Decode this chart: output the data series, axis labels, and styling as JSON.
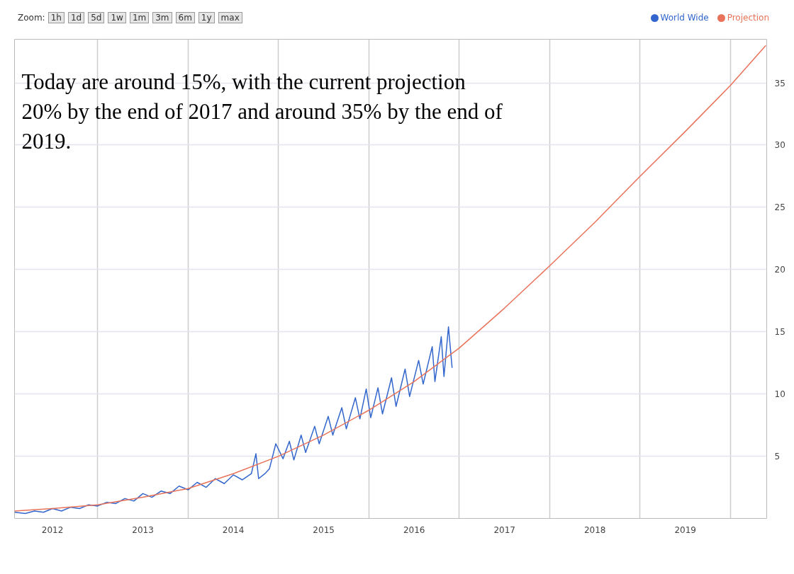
{
  "chart_data": {
    "type": "line",
    "annotations": [
      "Zoom:",
      "1h",
      "1d",
      "5d",
      "1w",
      "1m",
      "3m",
      "6m",
      "1y",
      "max",
      "Today are around 15%, with the current projection 20% by the end of 2017 and around 35% by the end of 2019."
    ],
    "xlim": [
      2012.08,
      2020.4
    ],
    "ylim": [
      0,
      38.5
    ],
    "xticks": [
      {
        "value": 2012.5,
        "label": "2012"
      },
      {
        "value": 2013,
        "label": null
      },
      {
        "value": 2013.5,
        "label": "2013"
      },
      {
        "value": 2014,
        "label": null
      },
      {
        "value": 2014.5,
        "label": "2014"
      },
      {
        "value": 2015,
        "label": null
      },
      {
        "value": 2015.5,
        "label": "2015"
      },
      {
        "value": 2016,
        "label": null
      },
      {
        "value": 2016.5,
        "label": "2016"
      },
      {
        "value": 2017,
        "label": null
      },
      {
        "value": 2017.5,
        "label": "2017"
      },
      {
        "value": 2018,
        "label": null
      },
      {
        "value": 2018.5,
        "label": "2018"
      },
      {
        "value": 2019,
        "label": null
      },
      {
        "value": 2019.5,
        "label": "2019"
      },
      {
        "value": 2020,
        "label": null
      }
    ],
    "yticks": [
      5,
      10,
      15,
      20,
      25,
      30,
      35
    ],
    "grid": true,
    "legend": "top right",
    "marker": "none",
    "line_style": "solid",
    "series": [
      {
        "name": "World Wide",
        "color": "#3366cc",
        "x": [
          2012.08,
          2012.2,
          2012.3,
          2012.4,
          2012.5,
          2012.6,
          2012.7,
          2012.8,
          2012.9,
          2013.0,
          2013.1,
          2013.2,
          2013.3,
          2013.4,
          2013.5,
          2013.6,
          2013.7,
          2013.8,
          2013.9,
          2014.0,
          2014.1,
          2014.2,
          2014.3,
          2014.4,
          2014.5,
          2014.6,
          2014.7,
          2014.75,
          2014.78,
          2014.85,
          2014.9,
          2014.97,
          2015.05,
          2015.12,
          2015.17,
          2015.25,
          2015.3,
          2015.4,
          2015.45,
          2015.55,
          2015.6,
          2015.7,
          2015.75,
          2015.85,
          2015.9,
          2015.97,
          2016.02,
          2016.1,
          2016.15,
          2016.25,
          2016.3,
          2016.4,
          2016.45,
          2016.55,
          2016.6,
          2016.7,
          2016.73,
          2016.8,
          2016.83,
          2016.88,
          2016.92
        ],
        "values": [
          0.5,
          0.4,
          0.6,
          0.5,
          0.8,
          0.6,
          0.9,
          0.8,
          1.1,
          1.0,
          1.3,
          1.2,
          1.6,
          1.4,
          2.0,
          1.7,
          2.2,
          2.0,
          2.6,
          2.3,
          2.9,
          2.5,
          3.2,
          2.8,
          3.5,
          3.1,
          3.6,
          5.2,
          3.2,
          3.6,
          4.0,
          6.0,
          4.8,
          6.2,
          4.7,
          6.7,
          5.3,
          7.4,
          6.0,
          8.2,
          6.7,
          8.9,
          7.2,
          9.7,
          8.0,
          10.4,
          8.1,
          10.5,
          8.4,
          11.3,
          9.0,
          12.0,
          9.8,
          12.7,
          10.8,
          13.8,
          11.0,
          14.6,
          11.4,
          15.4,
          12.1
        ]
      },
      {
        "name": "Projection",
        "color": "#e8735a",
        "x": [
          2012.08,
          2012.5,
          2013,
          2013.5,
          2014,
          2014.5,
          2015,
          2015.5,
          2016,
          2016.5,
          2017,
          2017.5,
          2018,
          2018.5,
          2019,
          2019.5,
          2020,
          2020.39
        ],
        "values": [
          0.6,
          0.8,
          1.1,
          1.7,
          2.4,
          3.6,
          5.0,
          6.7,
          8.7,
          11.0,
          13.7,
          16.9,
          20.3,
          23.8,
          27.5,
          31.1,
          34.8,
          38.0
        ]
      }
    ]
  }
}
